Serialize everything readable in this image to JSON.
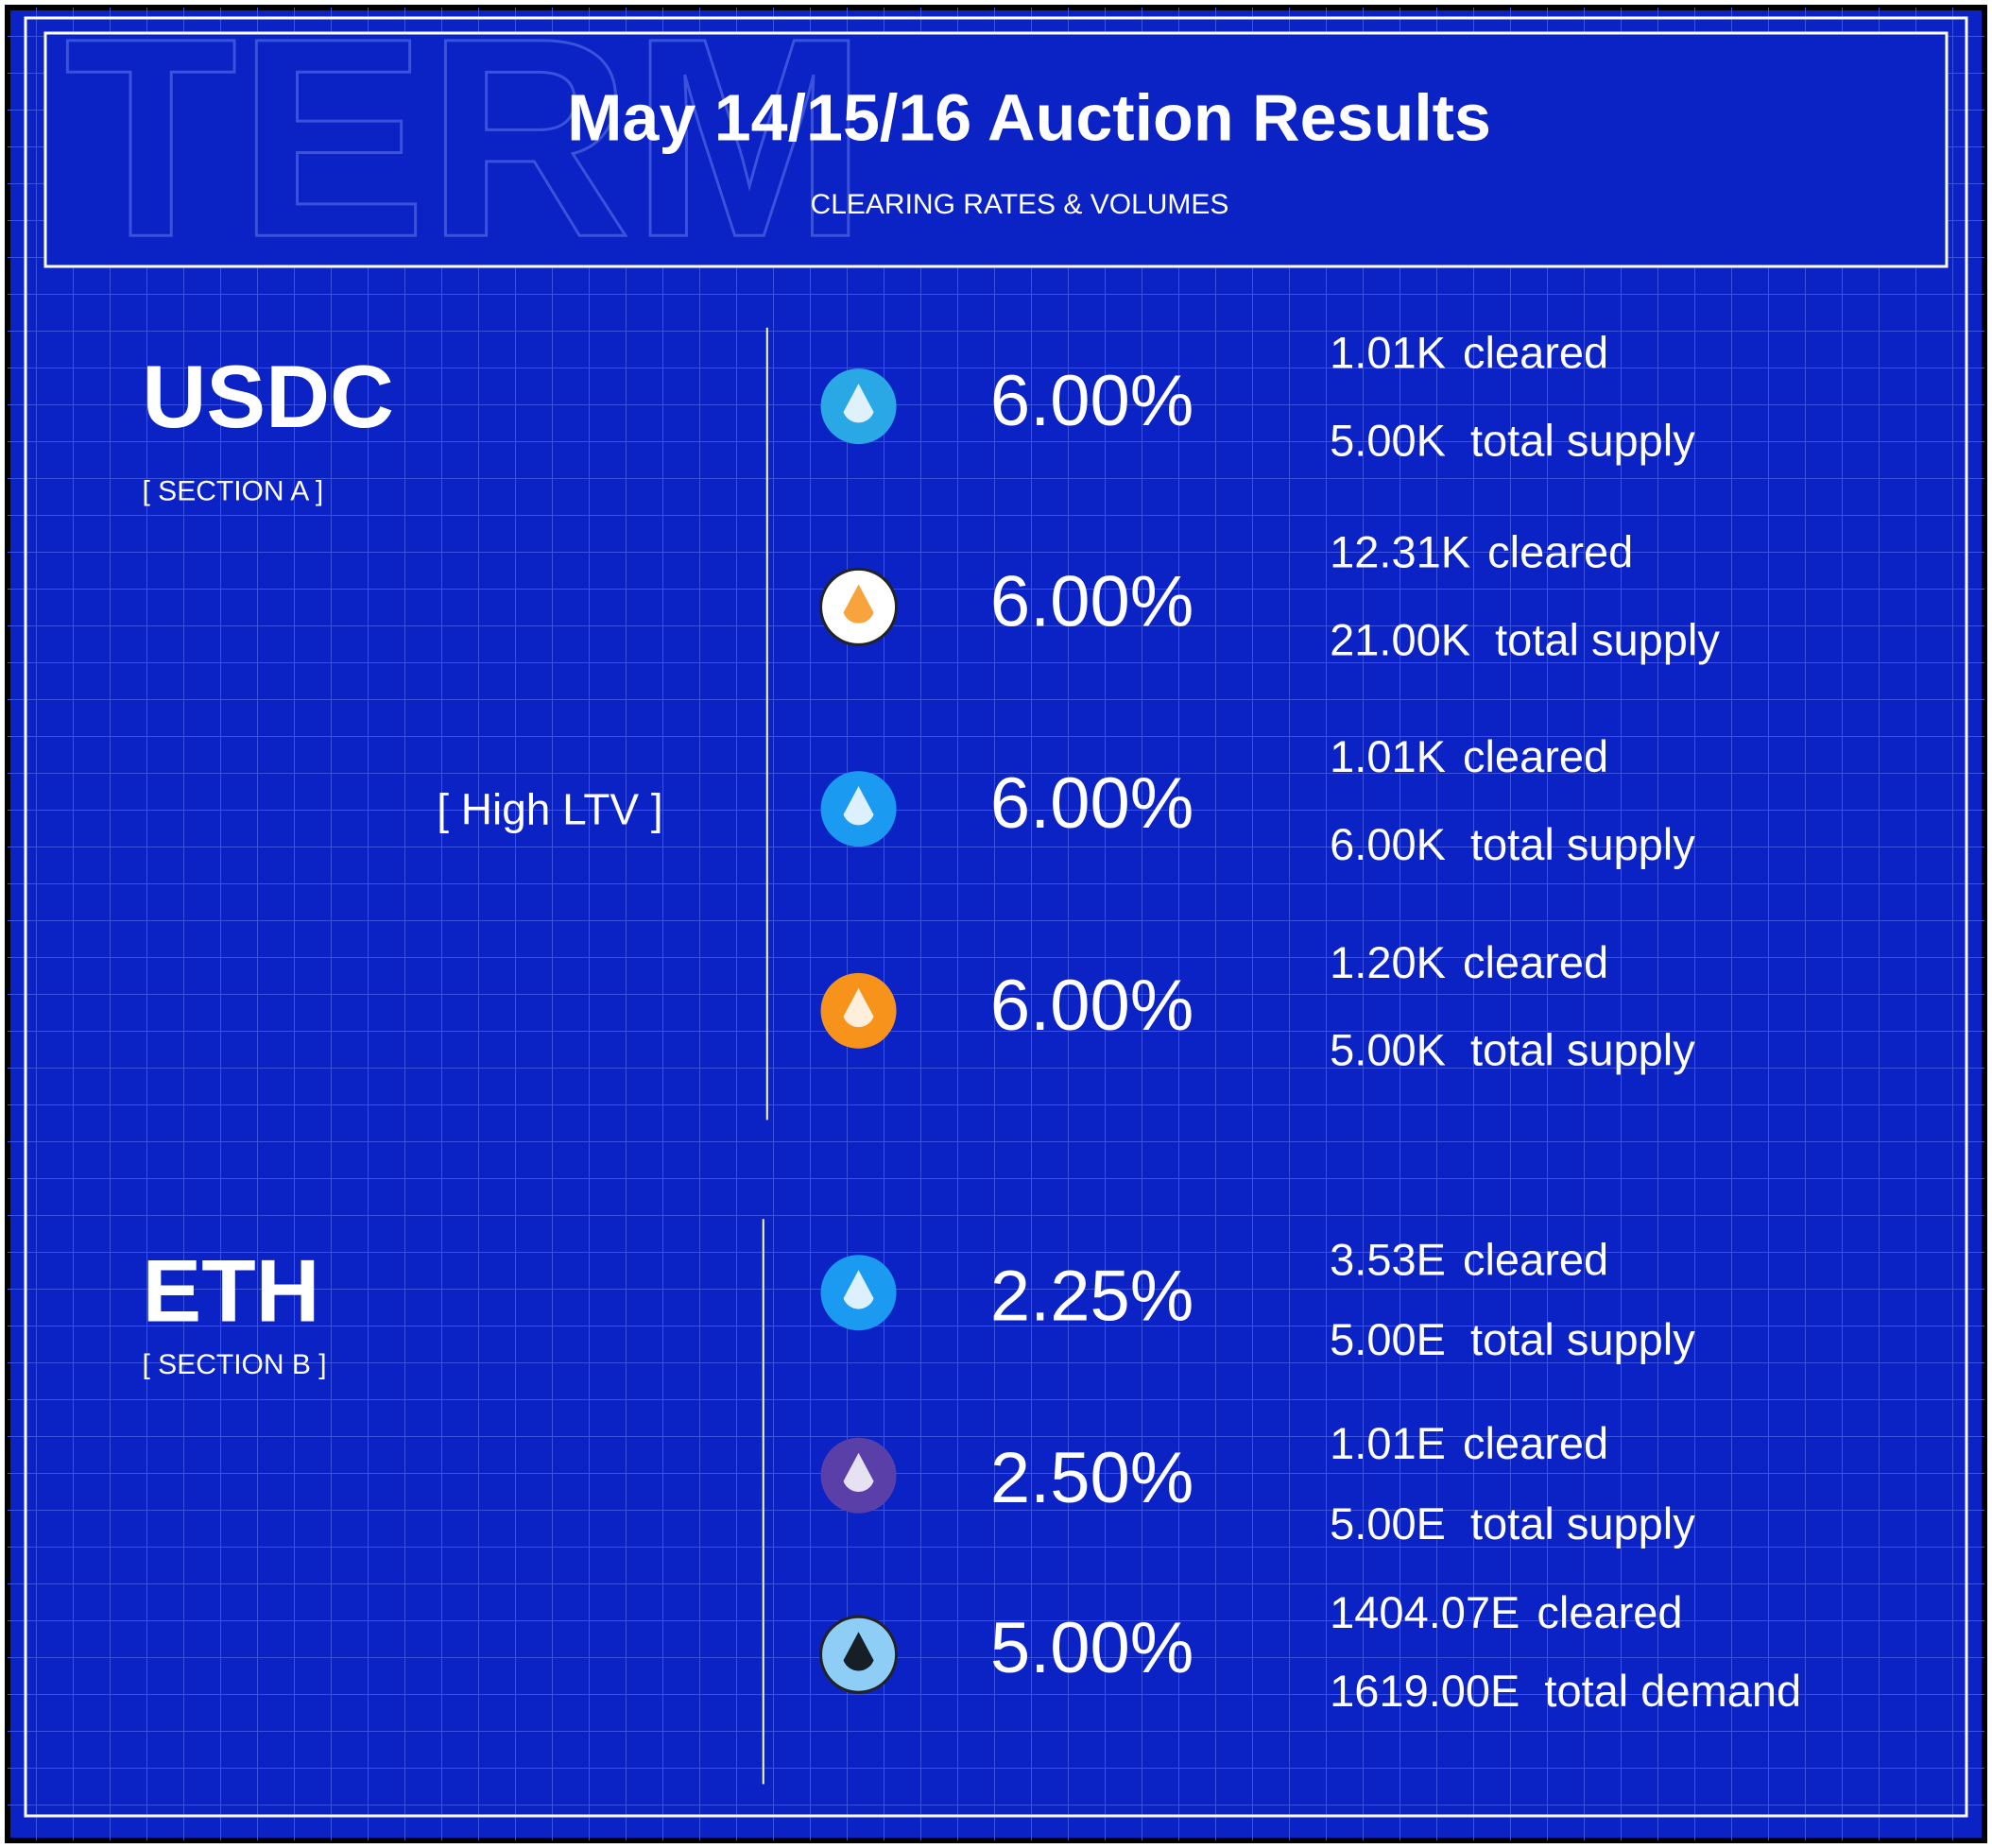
{
  "header": {
    "watermark": "TERM",
    "title": "May 14/15/16 Auction Results",
    "subtitle": "CLEARING RATES & VOLUMES"
  },
  "sections": [
    {
      "name": "USDC",
      "label": "[ SECTION A ]",
      "note": "[ High LTV ]",
      "rows": [
        {
          "rate": "6.00%",
          "cleared": "1.01K",
          "cleared_label": "cleared",
          "total": "5.00K",
          "total_label": "total supply"
        },
        {
          "rate": "6.00%",
          "cleared": "12.31K",
          "cleared_label": "cleared",
          "total": "21.00K",
          "total_label": "total supply"
        },
        {
          "rate": "6.00%",
          "cleared": "1.01K",
          "cleared_label": "cleared",
          "total": "6.00K",
          "total_label": "total supply"
        },
        {
          "rate": "6.00%",
          "cleared": "1.20K",
          "cleared_label": "cleared",
          "total": "5.00K",
          "total_label": "total supply"
        }
      ]
    },
    {
      "name": "ETH",
      "label": "[ SECTION B ]",
      "rows": [
        {
          "rate": "2.25%",
          "cleared": "3.53E",
          "cleared_label": "cleared",
          "total": "5.00E",
          "total_label": "total supply"
        },
        {
          "rate": "2.50%",
          "cleared": "1.01E",
          "cleared_label": "cleared",
          "total": "5.00E",
          "total_label": "total supply"
        },
        {
          "rate": "5.00%",
          "cleared": "1404.07E",
          "cleared_label": "cleared",
          "total": "1619.00E",
          "total_label": "total demand"
        }
      ]
    }
  ]
}
